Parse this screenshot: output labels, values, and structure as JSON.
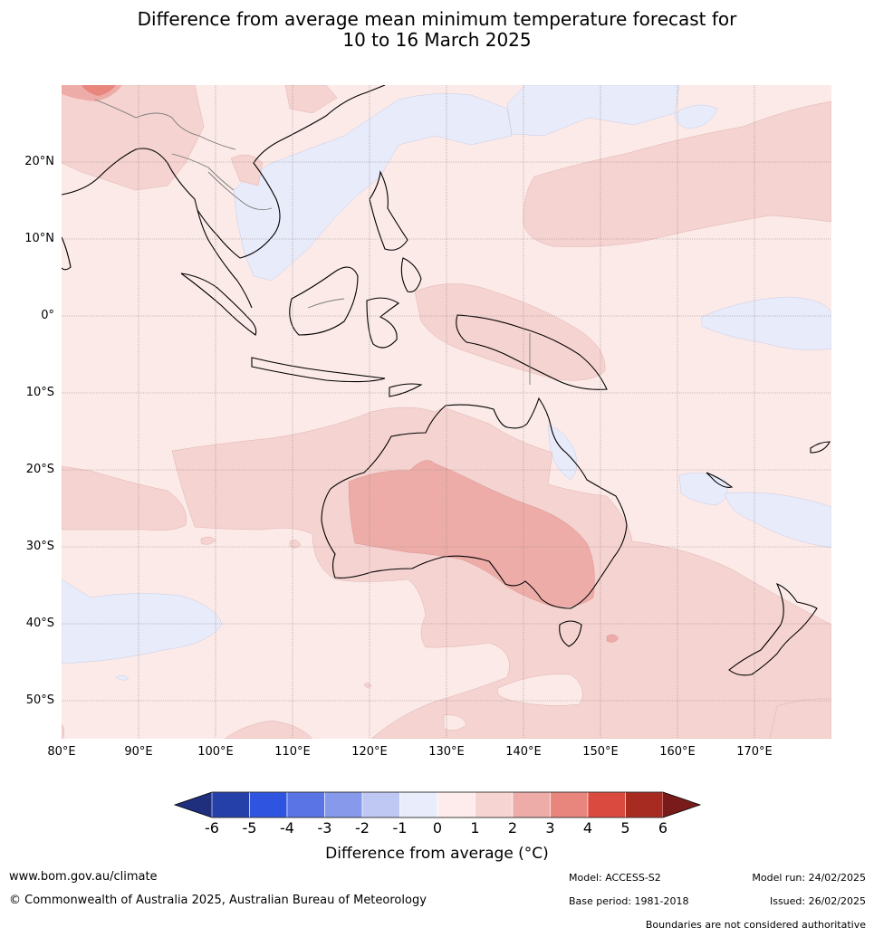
{
  "title": {
    "line1": "Difference from average mean minimum temperature forecast for",
    "line2": "10 to 16 March 2025"
  },
  "map": {
    "lon_labels": [
      "80°E",
      "90°E",
      "100°E",
      "110°E",
      "120°E",
      "130°E",
      "140°E",
      "150°E",
      "160°E",
      "170°E"
    ],
    "lat_labels": [
      "20°N",
      "10°N",
      "0°",
      "10°S",
      "20°S",
      "30°S",
      "40°S",
      "50°S"
    ],
    "lon_values": [
      80,
      90,
      100,
      110,
      120,
      130,
      140,
      150,
      160,
      170
    ],
    "lat_values": [
      20,
      10,
      0,
      -10,
      -20,
      -30,
      -40,
      -50
    ],
    "lon_range": [
      80,
      180
    ],
    "lat_range": [
      -55,
      30
    ]
  },
  "colorbar": {
    "ticks": [
      "-6",
      "-5",
      "-4",
      "-3",
      "-2",
      "-1",
      "0",
      "1",
      "2",
      "3",
      "4",
      "5",
      "6"
    ],
    "colors": [
      "#2540a8",
      "#2f55e0",
      "#5a74e6",
      "#8799eb",
      "#bfc7f3",
      "#e8ecfb",
      "#fdeceb",
      "#f6d4d1",
      "#edaca8",
      "#e8857d",
      "#db4a3e",
      "#a82b22"
    ],
    "under_color": "#1f2f7e",
    "over_color": "#7a1b1b",
    "label": "Difference from average (°C)"
  },
  "footer": {
    "website": "www.bom.gov.au/climate",
    "copyright": "© Commonwealth of Australia 2025, Australian Bureau of Meteorology",
    "model": "Model: ACCESS-S2",
    "base_period": "Base period: 1981-2018",
    "model_run": "Model run: 24/02/2025",
    "issued": "Issued: 26/02/2025",
    "disclaimer": "Boundaries are not considered authoritative"
  }
}
